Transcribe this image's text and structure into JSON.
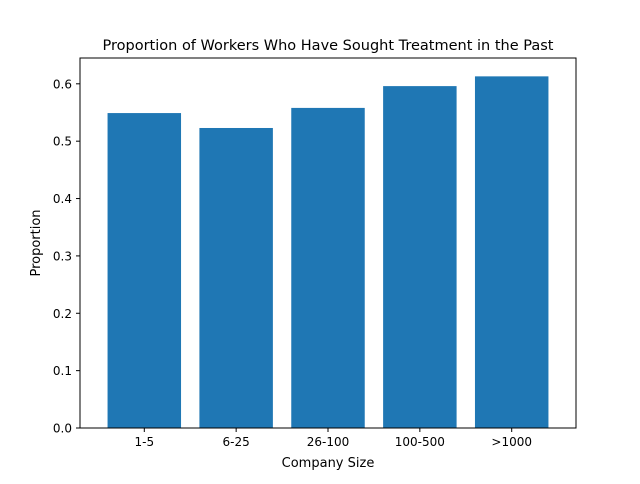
{
  "chart_data": {
    "type": "bar",
    "title": "Proportion of Workers Who Have Sought Treatment in the Past",
    "xlabel": "Company Size",
    "ylabel": "Proportion",
    "categories": [
      "1-5",
      "6-25",
      "26-100",
      "100-500",
      ">1000"
    ],
    "values": [
      0.549,
      0.523,
      0.558,
      0.596,
      0.613
    ],
    "ylim": [
      0,
      0.645
    ],
    "yticks": [
      0.0,
      0.1,
      0.2,
      0.3,
      0.4,
      0.5,
      0.6
    ],
    "ytick_labels": [
      "0.0",
      "0.1",
      "0.2",
      "0.3",
      "0.4",
      "0.5",
      "0.6"
    ],
    "grid": false,
    "legend": "none",
    "bar_color": "#1f77b4"
  }
}
